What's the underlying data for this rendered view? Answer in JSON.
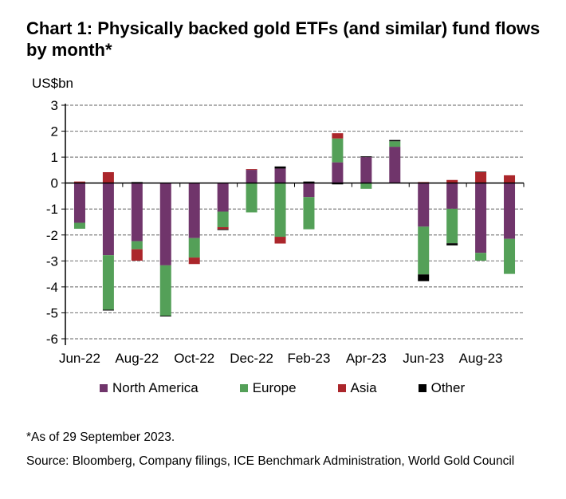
{
  "chart_data": {
    "type": "bar",
    "stacked": true,
    "title": "Chart 1: Physically backed gold ETFs (and similar) fund flows by month*",
    "ylabel": "US$bn",
    "ylim": [
      -6,
      3
    ],
    "yticks": [
      "3",
      "2",
      "1",
      "0",
      "-1",
      "-2",
      "-3",
      "-4",
      "-5",
      "-6"
    ],
    "grid": true,
    "legend_position": "bottom",
    "categories": [
      "Jun-22",
      "Jul-22",
      "Aug-22",
      "Sep-22",
      "Oct-22",
      "Nov-22",
      "Dec-22",
      "Jan-23",
      "Feb-23",
      "Mar-23",
      "Apr-23",
      "May-23",
      "Jun-23",
      "Jul-23",
      "Aug-23",
      "Sep-23"
    ],
    "xtick_labels": [
      "Jun-22",
      "Aug-22",
      "Oct-22",
      "Dec-22",
      "Feb-23",
      "Apr-23",
      "Jun-23",
      "Aug-23"
    ],
    "series": [
      {
        "name": "North America",
        "color": "#70356b",
        "values": [
          -1.53,
          -2.78,
          -2.24,
          -3.17,
          -2.12,
          -1.1,
          0.51,
          0.56,
          -0.54,
          0.8,
          1.0,
          1.4,
          -1.68,
          -0.99,
          -2.69,
          -2.15
        ]
      },
      {
        "name": "Europe",
        "color": "#54a058",
        "values": [
          -0.23,
          -2.1,
          -0.31,
          -1.94,
          -0.75,
          -0.6,
          -1.13,
          -2.07,
          -1.24,
          0.92,
          -0.22,
          0.21,
          -1.84,
          -1.33,
          -0.3,
          -1.35
        ]
      },
      {
        "name": "Asia",
        "color": "#ab262b",
        "values": [
          0.06,
          0.42,
          -0.44,
          0,
          -0.25,
          -0.08,
          0.03,
          -0.26,
          0,
          0.2,
          0,
          0,
          0.04,
          0.12,
          0.42,
          0.3
        ]
      },
      {
        "name": "Other",
        "color": "#000000",
        "values": [
          0,
          -0.03,
          0.04,
          -0.03,
          0,
          -0.03,
          0,
          0.08,
          0.06,
          -0.05,
          0.03,
          0.05,
          -0.26,
          -0.08,
          0.02,
          0
        ]
      }
    ]
  },
  "footnote": "*As of 29 September 2023.",
  "source": "Source: Bloomberg, Company filings, ICE Benchmark Administration, World Gold Council"
}
